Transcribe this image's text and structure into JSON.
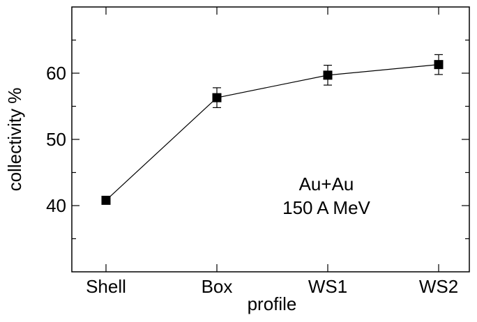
{
  "chart_data": {
    "type": "line",
    "title": "",
    "xlabel": "profile",
    "ylabel": "collectivity %",
    "categories": [
      "Shell",
      "Box",
      "WS1",
      "WS2"
    ],
    "series": [
      {
        "values": [
          40.8,
          56.3,
          59.7,
          61.3
        ],
        "errors": [
          0.0,
          1.5,
          1.5,
          1.5
        ],
        "marker": "square",
        "color": "#000000"
      }
    ],
    "ylim": [
      30,
      70
    ],
    "yticks": [
      40,
      50,
      60
    ],
    "yminor_step": 5,
    "annotation": [
      "Au+Au",
      "150 A MeV"
    ],
    "grid": false,
    "legend": "none"
  }
}
